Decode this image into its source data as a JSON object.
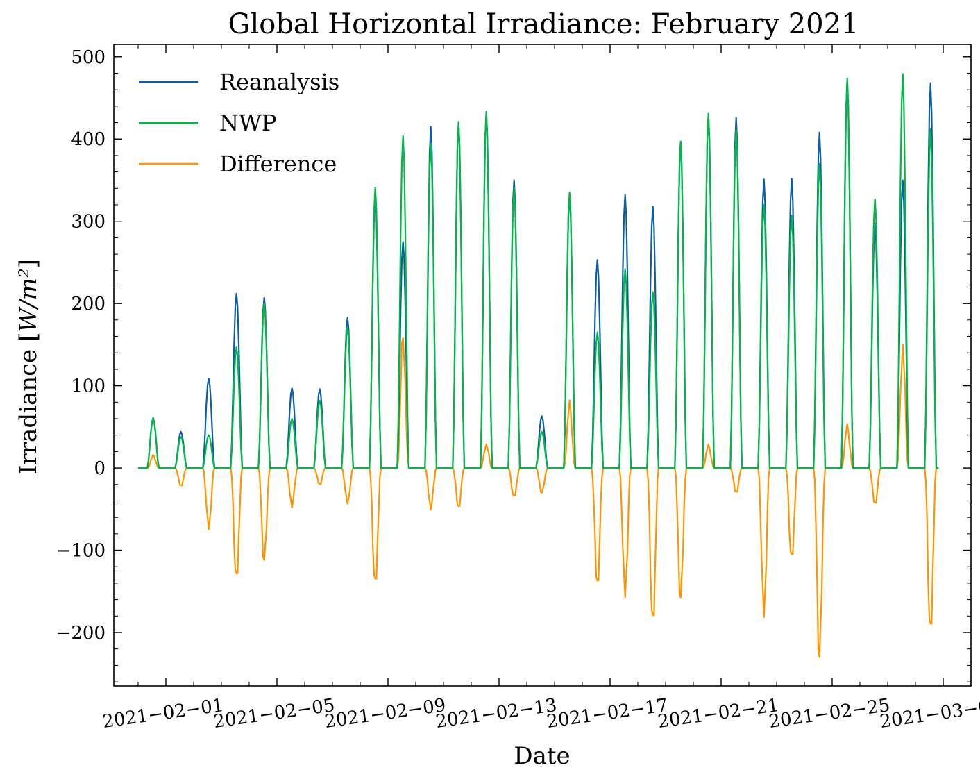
{
  "chart_data": {
    "type": "line",
    "title": "Global Horizontal Irradiance: February 2021",
    "xlabel": "Date",
    "ylabel": "Irradiance [W/m²]",
    "ylim": [
      -265,
      515
    ],
    "yticks": [
      -200,
      -100,
      0,
      100,
      200,
      300,
      400,
      500
    ],
    "ytick_labels": [
      "−200",
      "−100",
      "0",
      "100",
      "200",
      "300",
      "400",
      "500"
    ],
    "xlim": [
      "2021-01-30T03:00",
      "2021-03-02T00:00"
    ],
    "xticks": [
      "2021-02-01",
      "2021-02-05",
      "2021-02-09",
      "2021-02-13",
      "2021-02-17",
      "2021-02-21",
      "2021-02-25",
      "2021-03-01"
    ],
    "xtick_labels": [
      "2021−02−01",
      "2021−02−05",
      "2021−02−09",
      "2021−02−13",
      "2021−02−17",
      "2021−02−21",
      "2021−02−25",
      "2021−03−01"
    ],
    "x": [
      "2021-01-31",
      "2021-02-01",
      "2021-02-02",
      "2021-02-03",
      "2021-02-04",
      "2021-02-05",
      "2021-02-06",
      "2021-02-07",
      "2021-02-08",
      "2021-02-09",
      "2021-02-10",
      "2021-02-11",
      "2021-02-12",
      "2021-02-13",
      "2021-02-14",
      "2021-02-15",
      "2021-02-16",
      "2021-02-17",
      "2021-02-18",
      "2021-02-19",
      "2021-02-20",
      "2021-02-21",
      "2021-02-22",
      "2021-02-23",
      "2021-02-24",
      "2021-02-25",
      "2021-02-26",
      "2021-02-27",
      "2021-02-28"
    ],
    "x_note": "daily midday peak values (hourly series is zero at night)",
    "series": [
      {
        "name": "Reanalysis",
        "color": "#0C5DA5",
        "values": [
          60,
          44,
          109,
          212,
          207,
          97,
          96,
          183,
          332,
          275,
          415,
          420,
          433,
          350,
          63,
          332,
          253,
          332,
          318,
          397,
          430,
          426,
          351,
          352,
          408,
          472,
          297,
          350,
          468
        ]
      },
      {
        "name": "NWP",
        "color": "#00B945",
        "values": [
          61,
          38,
          40,
          147,
          200,
          60,
          82,
          172,
          341,
          404,
          395,
          421,
          433,
          340,
          44,
          335,
          165,
          242,
          214,
          397,
          431,
          411,
          320,
          307,
          370,
          474,
          327,
          479,
          412
        ]
      },
      {
        "name": "Difference",
        "color": "#FF9500",
        "values": [
          15,
          -22,
          -72,
          -138,
          -112,
          -45,
          -20,
          -42,
          -145,
          158,
          -47,
          -48,
          28,
          -36,
          -30,
          77,
          -142,
          -152,
          -193,
          -158,
          27,
          -30,
          -175,
          -113,
          -230,
          50,
          -44,
          145,
          -204
        ]
      }
    ],
    "legend": {
      "placement": "upper-left",
      "frame": false
    },
    "grid": false
  }
}
